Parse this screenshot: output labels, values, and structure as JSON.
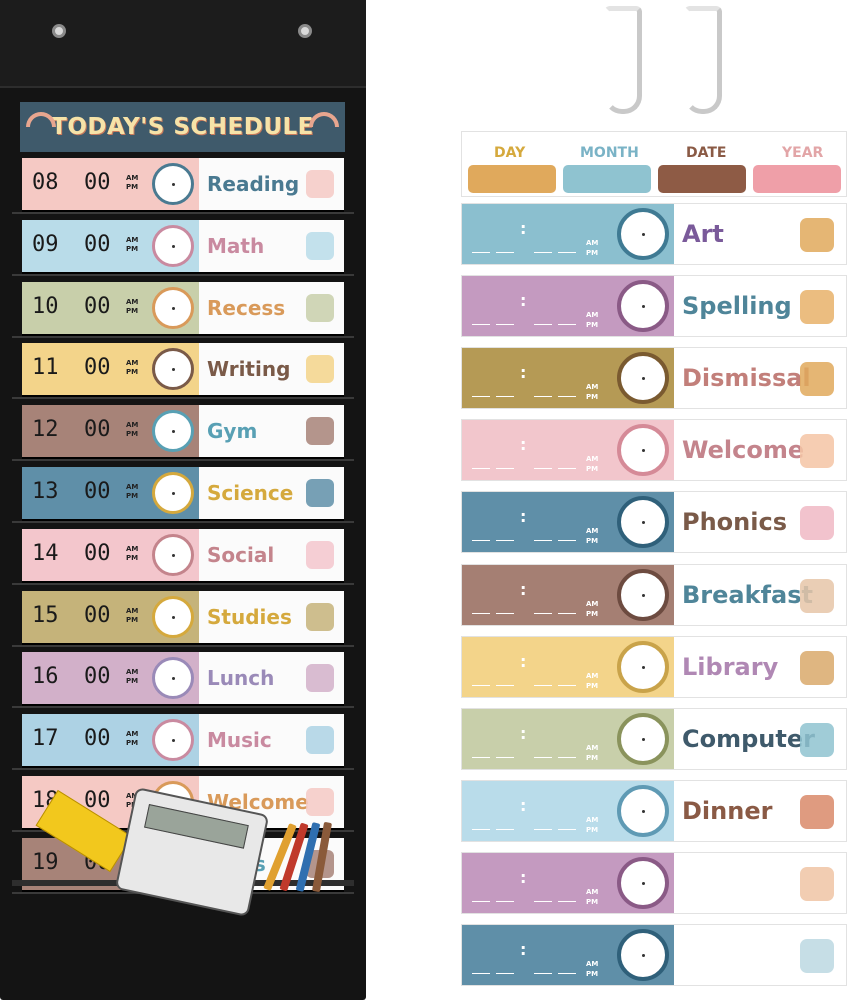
{
  "chart": {
    "title": "TODAY'S SCHEDULE",
    "rows": [
      {
        "hh": "08",
        "mm": "00",
        "subject": "Reading",
        "bg": "#f5c9c4",
        "text": "#4a7a91"
      },
      {
        "hh": "09",
        "mm": "00",
        "subject": "Math",
        "bg": "#b9dce9",
        "text": "#c98aa0"
      },
      {
        "hh": "10",
        "mm": "00",
        "subject": "Recess",
        "bg": "#c8cfaa",
        "text": "#d99a5a"
      },
      {
        "hh": "11",
        "mm": "00",
        "subject": "Writing",
        "bg": "#f3d48a",
        "text": "#7a5a48"
      },
      {
        "hh": "12",
        "mm": "00",
        "subject": "Gym",
        "bg": "#a78378",
        "text": "#58a0b4"
      },
      {
        "hh": "13",
        "mm": "00",
        "subject": "Science",
        "bg": "#5f8fa8",
        "text": "#d5a93d"
      },
      {
        "hh": "14",
        "mm": "00",
        "subject": "Social",
        "bg": "#f3c6cc",
        "text": "#c4848c"
      },
      {
        "hh": "15",
        "mm": "00",
        "subject": "Studies",
        "bg": "#c5b37a",
        "text": "#d5a93d"
      },
      {
        "hh": "16",
        "mm": "00",
        "subject": "Lunch",
        "bg": "#d2b0c9",
        "text": "#9a8ab8"
      },
      {
        "hh": "17",
        "mm": "00",
        "subject": "Music",
        "bg": "#add2e4",
        "text": "#c98aa0"
      },
      {
        "hh": "18",
        "mm": "00",
        "subject": "Welcome",
        "bg": "#f5c9c4",
        "text": "#d99a5a"
      },
      {
        "hh": "19",
        "mm": "00",
        "subject": "Class",
        "bg": "#a78378",
        "text": "#58a0b4"
      }
    ],
    "ampm": [
      "AM",
      "PM"
    ]
  },
  "date_card": {
    "labels": [
      {
        "text": "DAY",
        "color": "#d5a93d",
        "box": "#e0a95c"
      },
      {
        "text": "MONTH",
        "color": "#7ab3c6",
        "box": "#8fc3d0"
      },
      {
        "text": "DATE",
        "color": "#8a5a45",
        "box": "#8e5b45"
      },
      {
        "text": "YEAR",
        "color": "#e2a5a7",
        "box": "#ef9fa8"
      }
    ]
  },
  "cards": [
    {
      "subject": "Art",
      "bg": "#8bbfcf",
      "clock_border": "#3f7a93",
      "text": "#7a5a9a",
      "deco": "#e0a95c"
    },
    {
      "subject": "Spelling",
      "bg": "#c49ac0",
      "clock_border": "#8a5a86",
      "text": "#4f8599",
      "deco": "#e8b26a"
    },
    {
      "subject": "Dismissal",
      "bg": "#b59a55",
      "clock_border": "#7a5a30",
      "text": "#c27f7a",
      "deco": "#e0a95c"
    },
    {
      "subject": "Welcome",
      "bg": "#f2c6cc",
      "clock_border": "#d58a97",
      "text": "#c4848c",
      "deco": "#f4c4a4"
    },
    {
      "subject": "Phonics",
      "bg": "#5f8fa8",
      "clock_border": "#2f607a",
      "text": "#7a5a48",
      "deco": "#f0b8c4"
    },
    {
      "subject": "Breakfast",
      "bg": "#a57f73",
      "clock_border": "#6d4b40",
      "text": "#4f8599",
      "deco": "#e6c6a8"
    },
    {
      "subject": "Library",
      "bg": "#f3d48a",
      "clock_border": "#c9a34a",
      "text": "#b088b4",
      "deco": "#d9a96b"
    },
    {
      "subject": "Computer",
      "bg": "#c8cfaa",
      "clock_border": "#8a935c",
      "text": "#3f5a6b",
      "deco": "#8fc3d0"
    },
    {
      "subject": "Dinner",
      "bg": "#b9dcea",
      "clock_border": "#5f9ab4",
      "text": "#8a5a45",
      "deco": "#d98a6a"
    },
    {
      "subject": "",
      "bg": "#c49ac0",
      "clock_border": "#8a5a86",
      "text": "#8a5a45",
      "deco": "#f0c4a4"
    },
    {
      "subject": "",
      "bg": "#5f8fa8",
      "clock_border": "#2f607a",
      "text": "#8a5a45",
      "deco": "#bcd8e2"
    }
  ]
}
